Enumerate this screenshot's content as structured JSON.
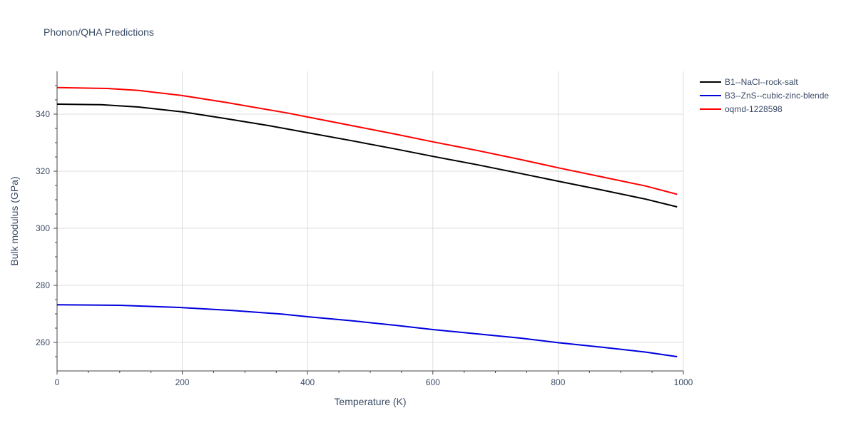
{
  "chart_data": {
    "type": "line",
    "title": "Phonon/QHA Predictions",
    "xlabel": "Temperature (K)",
    "ylabel": "Bulk modulus (GPa)",
    "xlim": [
      0,
      1000
    ],
    "ylim": [
      250,
      355
    ],
    "xticks": [
      0,
      200,
      400,
      600,
      800,
      1000
    ],
    "yticks": [
      260,
      280,
      300,
      320,
      340
    ],
    "grid": true,
    "legend_position": "top-right",
    "series": [
      {
        "name": "B1--NaCl--rock-salt",
        "color": "#000000",
        "x": [
          0,
          70,
          130,
          200,
          270,
          340,
          400,
          470,
          540,
          600,
          670,
          740,
          800,
          870,
          940,
          990
        ],
        "y": [
          343.5,
          343.3,
          342.5,
          340.8,
          338.4,
          335.9,
          333.5,
          330.7,
          327.8,
          325.2,
          322.3,
          319.2,
          316.5,
          313.4,
          310.2,
          307.5
        ]
      },
      {
        "name": "B3--ZnS--cubic-zinc-blende",
        "color": "#0000dd",
        "x": [
          0,
          100,
          200,
          280,
          360,
          400,
          470,
          540,
          600,
          670,
          740,
          800,
          870,
          940,
          990
        ],
        "y": [
          273.2,
          273.0,
          272.2,
          271.2,
          269.9,
          269.0,
          267.6,
          266.0,
          264.5,
          263.0,
          261.5,
          259.9,
          258.3,
          256.6,
          255.0
        ]
      },
      {
        "name": "oqmd-1228598",
        "color": "#ff0000",
        "x": [
          0,
          80,
          130,
          200,
          270,
          370,
          400,
          470,
          540,
          600,
          670,
          740,
          800,
          870,
          940,
          990
        ],
        "y": [
          349.3,
          349.0,
          348.3,
          346.5,
          344.1,
          340.3,
          339.0,
          336.0,
          333.0,
          330.3,
          327.3,
          324.1,
          321.2,
          318.0,
          314.8,
          311.9
        ]
      }
    ]
  }
}
